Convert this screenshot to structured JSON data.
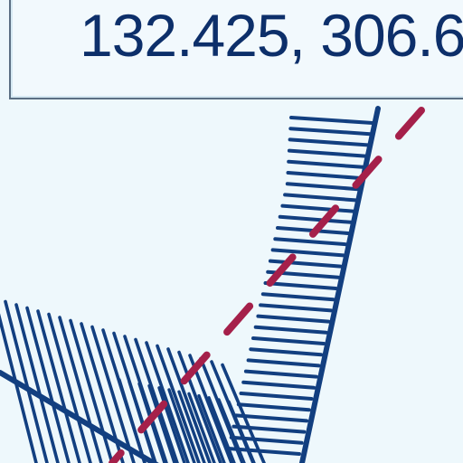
{
  "coordinate_readout": {
    "text": "132.425, 306.6"
  },
  "colors": {
    "background": "#eef8fc",
    "hatch_line": "#123f80",
    "dashed_path": "#a5204a",
    "box_border": "#5b6f83",
    "readout_text": "#0d2f6a"
  }
}
